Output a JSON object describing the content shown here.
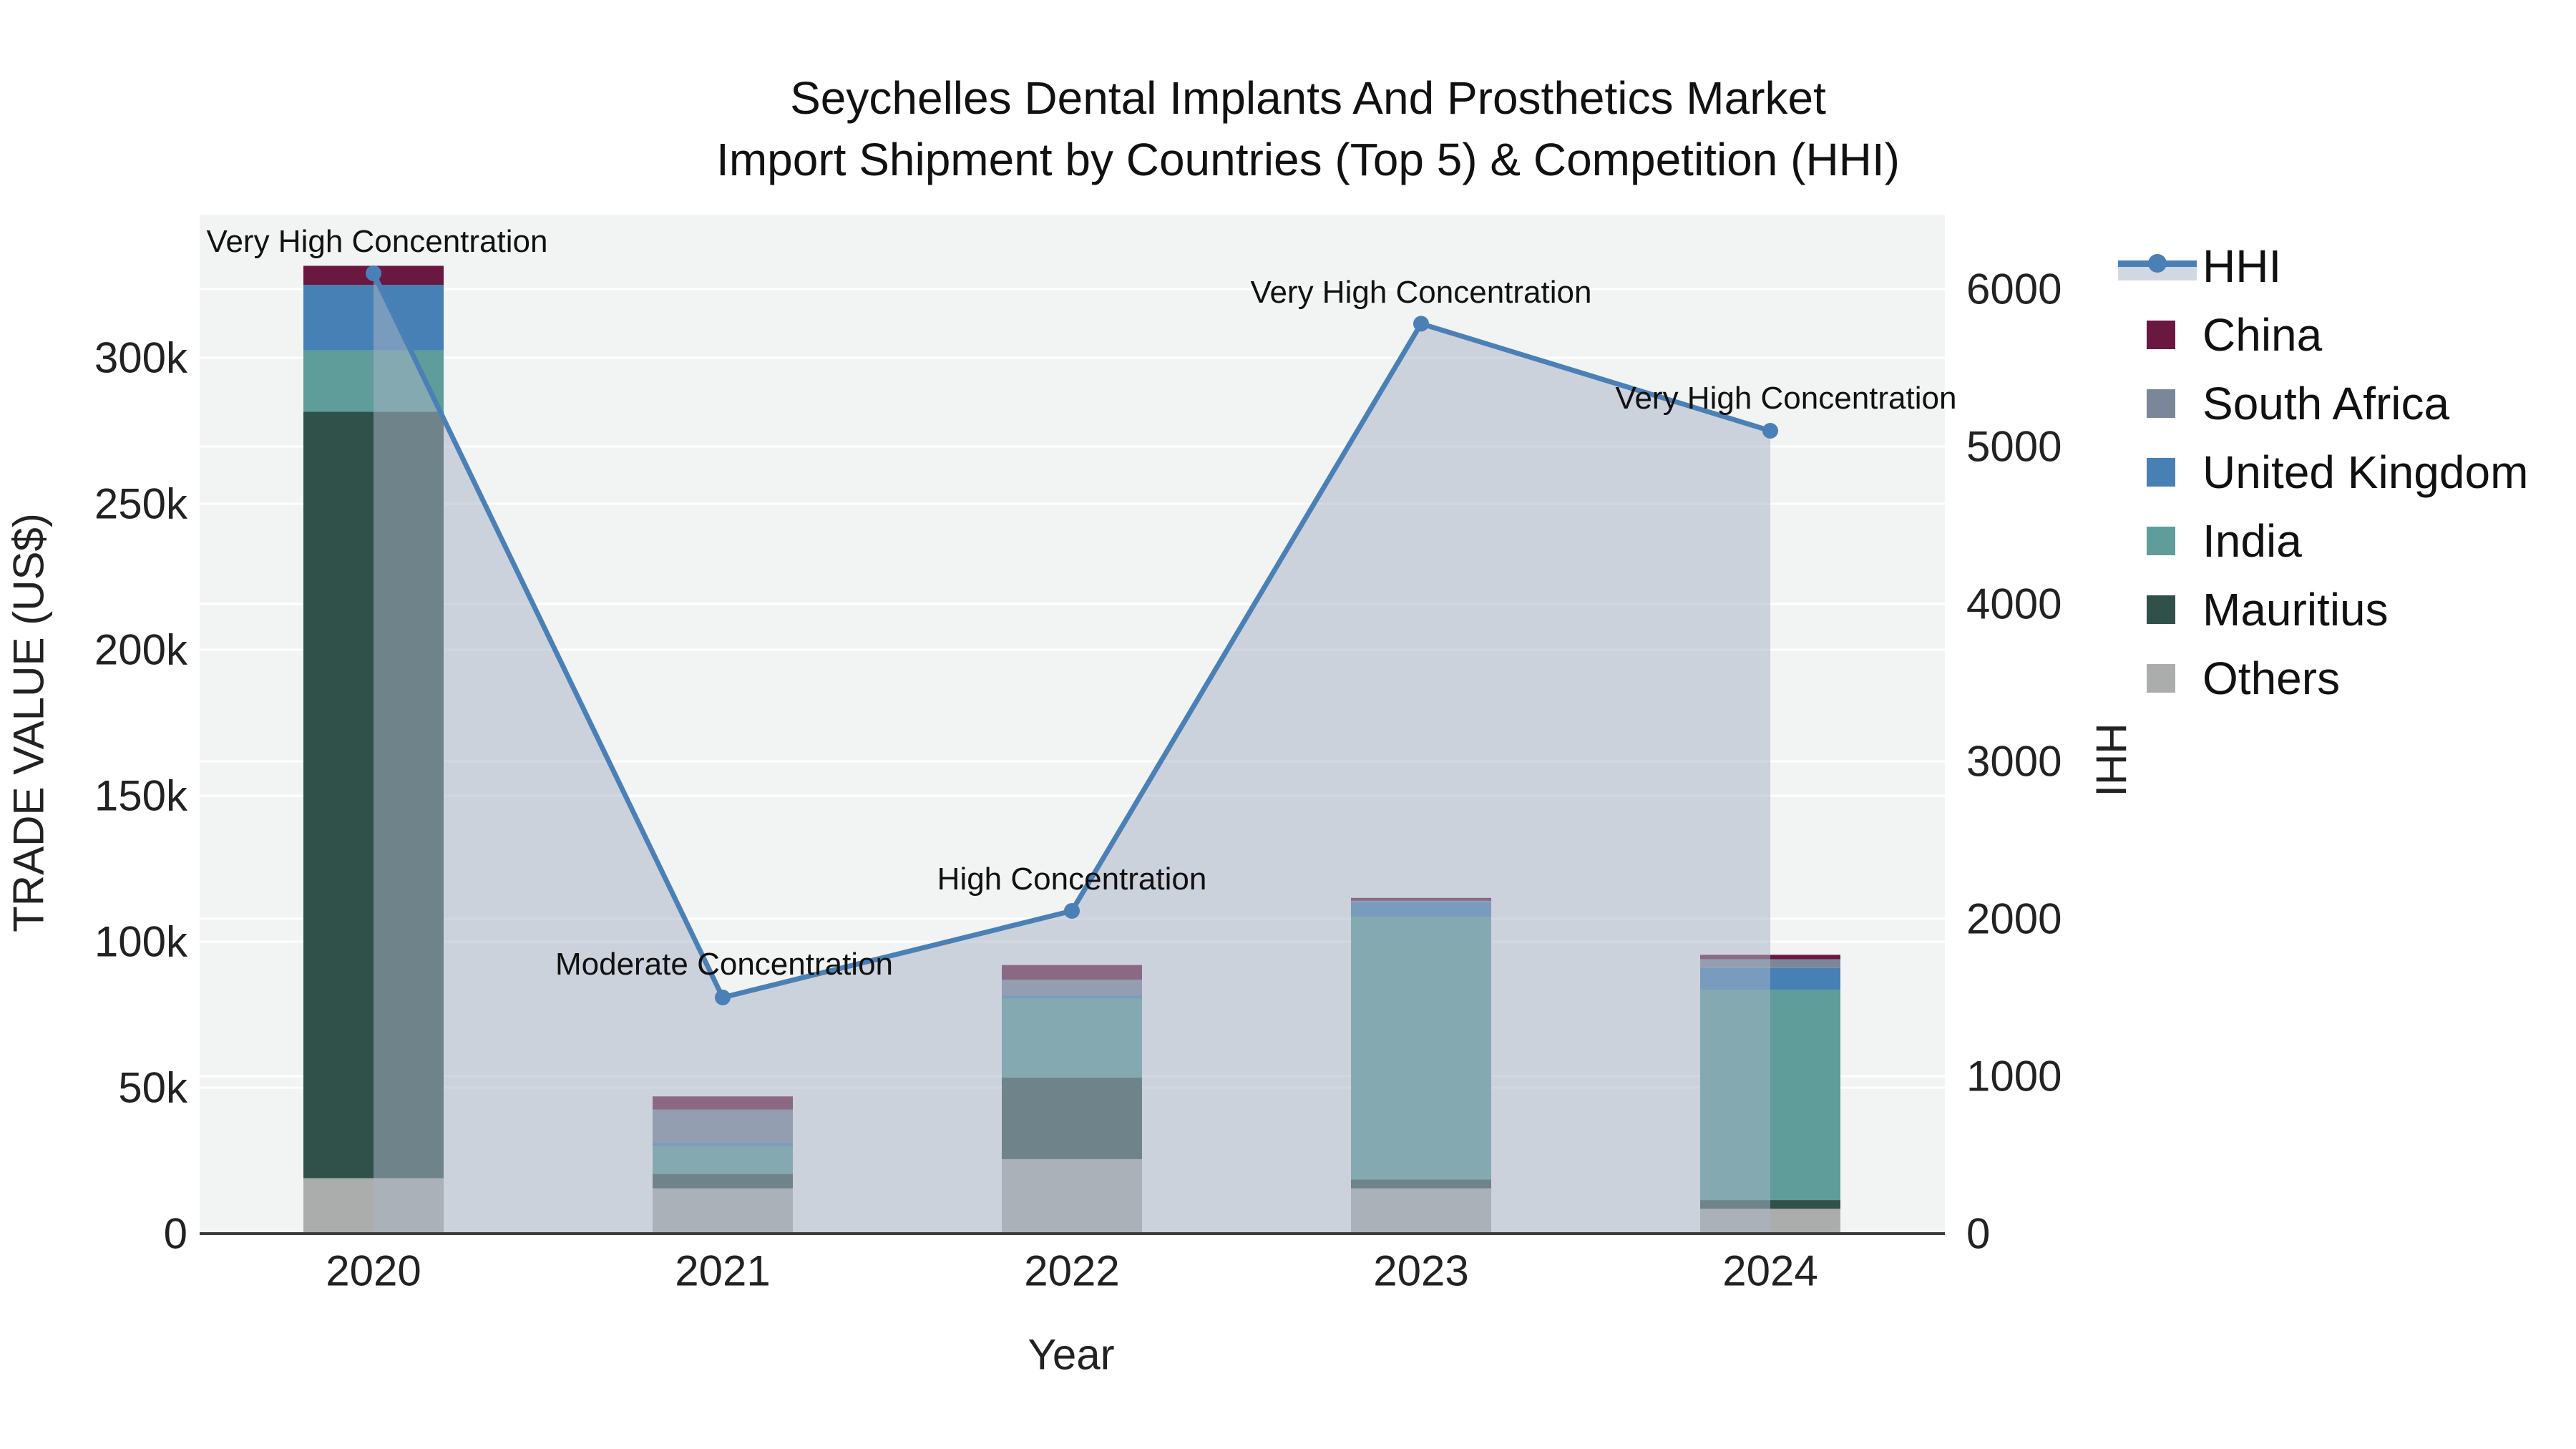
{
  "title": {
    "line1": "Seychelles Dental Implants And Prosthetics Market",
    "line2": "Import Shipment by Countries (Top 5) & Competition (HHI)"
  },
  "axes": {
    "x": {
      "title": "Year"
    },
    "y_left": {
      "title": "TRADE VALUE (US$)",
      "tick_labels": [
        "0",
        "50k",
        "100k",
        "150k",
        "200k",
        "250k",
        "300k"
      ],
      "tick_values": [
        0,
        50000,
        100000,
        150000,
        200000,
        250000,
        300000
      ]
    },
    "y_right": {
      "title": "HHI",
      "tick_labels": [
        "0",
        "1000",
        "2000",
        "3000",
        "4000",
        "5000",
        "6000"
      ],
      "tick_values": [
        0,
        1000,
        2000,
        3000,
        4000,
        5000,
        6000
      ]
    }
  },
  "legend": {
    "items": [
      {
        "label": "HHI",
        "swatch": "line"
      },
      {
        "label": "China",
        "swatch": "square",
        "color": "#6b1840"
      },
      {
        "label": "South Africa",
        "swatch": "square",
        "color": "#7b8798"
      },
      {
        "label": "United Kingdom",
        "swatch": "square",
        "color": "#4680b4"
      },
      {
        "label": "India",
        "swatch": "square",
        "color": "#5f9d9b"
      },
      {
        "label": "Mauritius",
        "swatch": "square",
        "color": "#30504a"
      },
      {
        "label": "Others",
        "swatch": "square",
        "color": "#abadac"
      }
    ]
  },
  "colors": {
    "plot_bg": "#f2f3f3",
    "grid": "#ffffff",
    "axis_line": "#3d3d3d",
    "hhi_line": "#4a80b6",
    "hhi_fill": "rgba(168,180,197,0.52)"
  },
  "chart_data": {
    "type": "bar+line",
    "categories": [
      "2020",
      "2021",
      "2022",
      "2023",
      "2024"
    ],
    "bar_series": [
      {
        "name": "Others",
        "color": "#abadac",
        "values": [
          19000,
          15500,
          25500,
          15500,
          8500
        ]
      },
      {
        "name": "Mauritius",
        "color": "#30504a",
        "values": [
          262500,
          5000,
          28000,
          3000,
          3000
        ]
      },
      {
        "name": "India",
        "color": "#5f9d9b",
        "values": [
          21000,
          9500,
          27000,
          90000,
          72000
        ]
      },
      {
        "name": "United Kingdom",
        "color": "#4680b4",
        "values": [
          22500,
          1000,
          1000,
          5000,
          7500
        ]
      },
      {
        "name": "South Africa",
        "color": "#7b8798",
        "values": [
          0,
          11500,
          5500,
          500,
          3000
        ]
      },
      {
        "name": "China",
        "color": "#6b1840",
        "values": [
          6500,
          4500,
          5000,
          1000,
          1500
        ]
      }
    ],
    "line_series": {
      "name": "HHI",
      "values": [
        6100,
        1500,
        2050,
        5780,
        5100
      ]
    },
    "annotations": [
      {
        "text": "Very High Concentration",
        "category_index": 0
      },
      {
        "text": "Moderate Concentration",
        "category_index": 1
      },
      {
        "text": "High Concentration",
        "category_index": 2
      },
      {
        "text": "Very High Concentration",
        "category_index": 3
      },
      {
        "text": "Very High Concentration",
        "category_index": 4
      }
    ],
    "title": "Seychelles Dental Implants And Prosthetics Market — Import Shipment by Countries (Top 5) & Competition (HHI)",
    "xlabel": "Year",
    "ylabel_left": "TRADE VALUE (US$)",
    "ylabel_right": "HHI",
    "ylim_left": [
      0,
      349000
    ],
    "ylim_right": [
      0,
      6470
    ],
    "grid": true,
    "legend_position": "right"
  }
}
